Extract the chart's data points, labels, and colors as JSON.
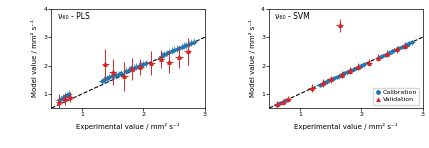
{
  "title_left": "ν₆₀ - PLS",
  "title_right": "ν₆₀ - SVM",
  "xlabel": "Experimental value / mm² s⁻¹",
  "ylabel": "Model value / mm² s⁻¹",
  "xlim": [
    0.5,
    3.0
  ],
  "ylim": [
    0.5,
    4.0
  ],
  "cal_color": "#1f77b4",
  "val_color": "#d62728",
  "legend_labels": [
    "Calibration",
    "Validation"
  ],
  "pls_cal_x": [
    0.62,
    0.65,
    0.68,
    0.72,
    0.75,
    0.78,
    1.32,
    1.36,
    1.4,
    1.44,
    1.48,
    1.52,
    1.56,
    1.6,
    1.64,
    1.72,
    1.76,
    1.8,
    1.84,
    1.88,
    1.92,
    1.96,
    2.0,
    2.04,
    2.3,
    2.34,
    2.38,
    2.42,
    2.46,
    2.5,
    2.54,
    2.58,
    2.62,
    2.66,
    2.7,
    2.74,
    2.78,
    2.82
  ],
  "pls_cal_y": [
    0.78,
    0.82,
    0.86,
    0.92,
    0.96,
    1.0,
    1.45,
    1.5,
    1.55,
    1.58,
    1.62,
    1.65,
    1.68,
    1.7,
    1.72,
    1.82,
    1.86,
    1.9,
    1.92,
    1.96,
    2.0,
    2.02,
    2.05,
    2.08,
    2.35,
    2.4,
    2.44,
    2.48,
    2.52,
    2.56,
    2.6,
    2.62,
    2.66,
    2.7,
    2.72,
    2.76,
    2.8,
    2.84
  ],
  "pls_cal_xerr": 0.06,
  "pls_cal_yerr": 0.12,
  "pls_val_x": [
    0.63,
    0.72,
    0.8,
    1.38,
    1.5,
    1.68,
    1.82,
    1.95,
    2.12,
    2.28,
    2.42,
    2.58,
    2.72
  ],
  "pls_val_y": [
    0.72,
    0.82,
    0.88,
    2.05,
    1.78,
    1.62,
    1.88,
    1.95,
    2.08,
    2.22,
    2.12,
    2.3,
    2.5
  ],
  "pls_val_xerr": 0.06,
  "pls_val_yerr": [
    0.28,
    0.22,
    0.18,
    0.55,
    0.45,
    0.52,
    0.38,
    0.28,
    0.42,
    0.32,
    0.38,
    0.38,
    0.48
  ],
  "svm_cal_x": [
    0.62,
    0.65,
    0.68,
    0.72,
    0.75,
    0.78,
    1.32,
    1.36,
    1.4,
    1.44,
    1.48,
    1.52,
    1.56,
    1.6,
    1.64,
    1.72,
    1.76,
    1.8,
    1.84,
    1.88,
    1.92,
    1.96,
    2.0,
    2.04,
    2.3,
    2.34,
    2.38,
    2.42,
    2.46,
    2.5,
    2.54,
    2.58,
    2.62,
    2.66,
    2.7,
    2.74,
    2.78,
    2.82
  ],
  "svm_cal_y": [
    0.62,
    0.65,
    0.68,
    0.72,
    0.75,
    0.78,
    1.32,
    1.36,
    1.4,
    1.44,
    1.48,
    1.52,
    1.56,
    1.6,
    1.64,
    1.72,
    1.76,
    1.8,
    1.84,
    1.88,
    1.92,
    1.96,
    2.0,
    2.04,
    2.3,
    2.34,
    2.38,
    2.42,
    2.46,
    2.5,
    2.54,
    2.58,
    2.62,
    2.66,
    2.7,
    2.74,
    2.78,
    2.82
  ],
  "svm_cal_xerr": 0.06,
  "svm_cal_yerr": 0.08,
  "svm_val_x": [
    0.63,
    0.72,
    0.8,
    1.2,
    1.38,
    1.5,
    1.68,
    1.82,
    1.95,
    2.12,
    2.28,
    2.42,
    2.58,
    2.72
  ],
  "svm_val_y": [
    0.64,
    0.72,
    0.82,
    1.22,
    1.38,
    1.52,
    1.68,
    1.82,
    1.96,
    2.1,
    2.28,
    2.42,
    2.58,
    2.7
  ],
  "svm_val_xerr": 0.06,
  "svm_val_yerr": [
    0.1,
    0.1,
    0.1,
    0.14,
    0.14,
    0.12,
    0.12,
    0.12,
    0.12,
    0.12,
    0.12,
    0.12,
    0.12,
    0.12
  ],
  "svm_outlier_x": 1.65,
  "svm_outlier_y": 3.42,
  "svm_outlier_xerr": 0.06,
  "svm_outlier_yerr": 0.22
}
